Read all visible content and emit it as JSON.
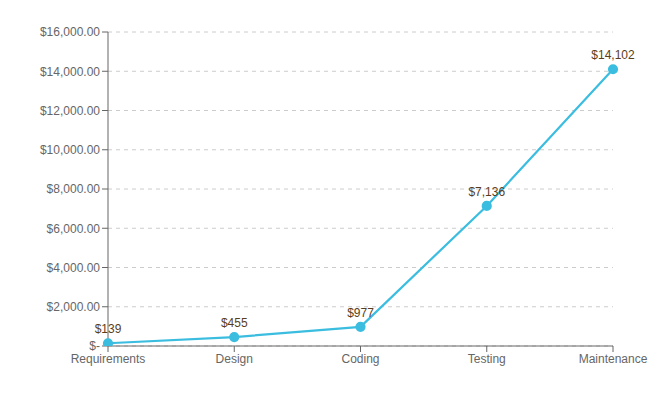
{
  "chart_data": {
    "type": "line",
    "categories": [
      "Requirements",
      "Design",
      "Coding",
      "Testing",
      "Maintenance"
    ],
    "values": [
      139,
      455,
      977,
      7136,
      14102
    ],
    "value_labels": [
      "$139",
      "$455",
      "$977",
      "$7,136",
      "$14,102"
    ],
    "data_labels": true,
    "color": "#3bbde0",
    "marker": "circle",
    "ylim": [
      0,
      16000
    ],
    "yticks": [
      {
        "value": 0,
        "label": "$-"
      },
      {
        "value": 2000,
        "label": "$2,000.00"
      },
      {
        "value": 4000,
        "label": "$4,000.00"
      },
      {
        "value": 6000,
        "label": "$6,000.00"
      },
      {
        "value": 8000,
        "label": "$8,000.00"
      },
      {
        "value": 10000,
        "label": "$10,000.00"
      },
      {
        "value": 12000,
        "label": "$12,000.00"
      },
      {
        "value": 14000,
        "label": "$14,000.00"
      },
      {
        "value": 16000,
        "label": "$16,000.00"
      }
    ],
    "grid": true
  }
}
